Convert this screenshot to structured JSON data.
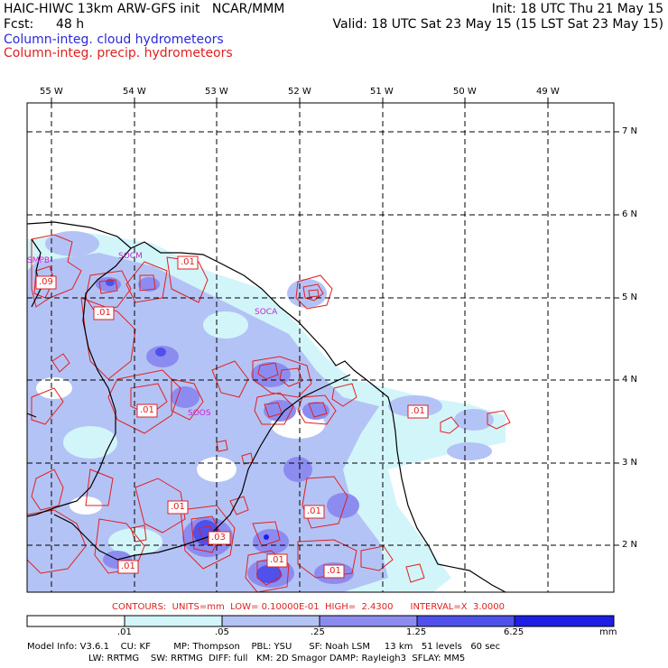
{
  "header": {
    "title": "HAIC-HIWC 13km ARW-GFS init   NCAR/MMM",
    "init": "Init: 18 UTC Thu 21 May 15",
    "fcst_label": "Fcst:",
    "fcst_value": "48 h",
    "valid": "Valid: 18 UTC Sat 23 May 15 (15 LST Sat 23 May 15)",
    "field_cloud": "Column-integ. cloud hydrometeors",
    "field_precip": "Column-integ. precip. hydrometeors"
  },
  "colors": {
    "cloud_text": "#2a2ad8",
    "precip_contour": "#e02020",
    "coastline": "#000000"
  },
  "map": {
    "lon_labels": [
      "55 W",
      "54 W",
      "53 W",
      "52 W",
      "51 W",
      "50 W",
      "49 W"
    ],
    "lat_labels": [
      "7 N",
      "6 N",
      "5 N",
      "4 N",
      "3 N",
      "2 N"
    ],
    "station_labels": [
      "SMPB",
      "SOCM",
      "SOCA",
      "SOOS"
    ],
    "contour_labels": [
      ".09",
      ".01",
      ".01",
      ".01",
      ".01",
      ".01",
      ".03",
      ".01",
      ".01",
      ".01",
      ".01"
    ]
  },
  "contour_info": {
    "text": "CONTOURS:  UNITS=mm  LOW= 0.10000E-01  HIGH=  2.4300      INTERVAL=X  3.0000"
  },
  "colorbar": {
    "levels": [
      ".01",
      ".05",
      ".25",
      "1.25",
      "6.25"
    ],
    "units": "mm",
    "colors": [
      "#ffffff",
      "#d2f5fa",
      "#b4c3f5",
      "#8c8cf0",
      "#5050ec",
      "#1e1ee6"
    ]
  },
  "model_info": {
    "line1": "Model Info: V3.6.1    CU: KF        MP: Thompson    PBL: YSU      SF: Noah LSM     13 km   51 levels   60 sec",
    "line2": "LW: RRTMG    SW: RRTMG  DIFF: full   KM: 2D Smagor DAMP: Rayleigh3  SFLAY: MM5"
  }
}
